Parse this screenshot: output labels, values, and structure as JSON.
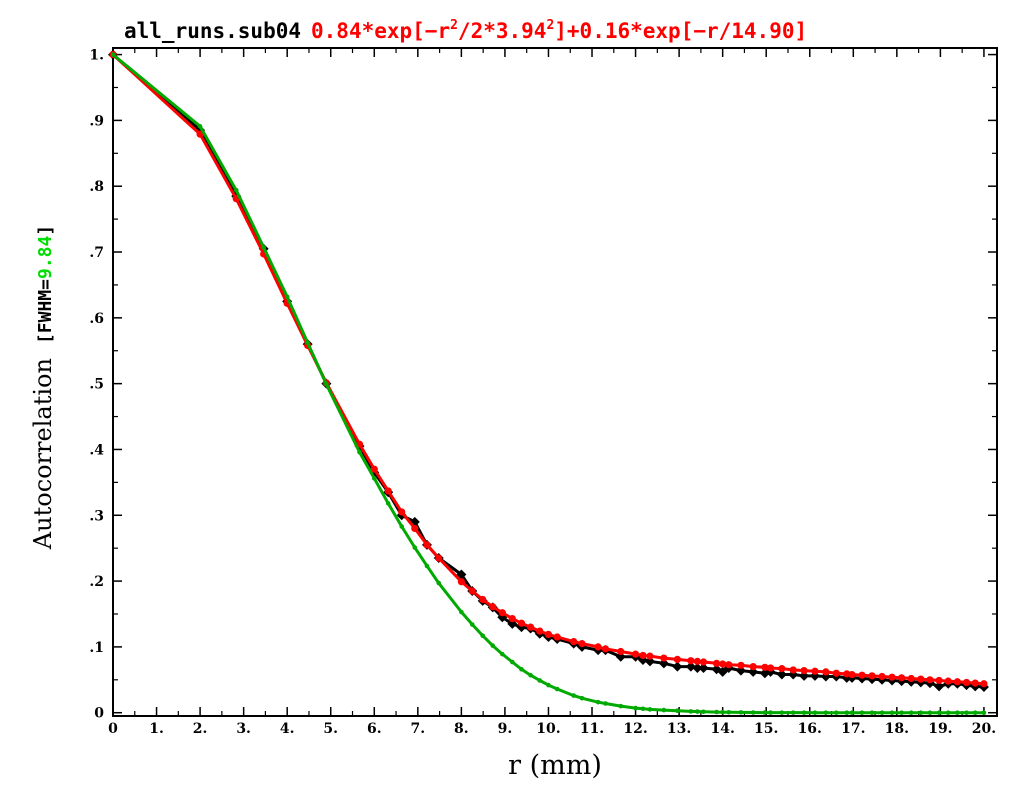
{
  "chart_data": {
    "type": "line",
    "title": "all_runs.sub04",
    "fit_label": {
      "p1": "0.84*exp[−r",
      "p2": "/2*3.94",
      "p3": "]+0.16*exp[−r/14.90]",
      "sup": "2"
    },
    "xlabel": "r (mm)",
    "ylabel": "Autocorrelation",
    "ylabel_fwhm_prefix": "[FWHM=",
    "ylabel_fwhm_value": "9.84",
    "ylabel_fwhm_suffix": "]",
    "xlim": [
      0,
      20.3
    ],
    "ylim": [
      -0.005,
      1.01
    ],
    "x_ticks": [
      {
        "v": 0,
        "label": "0"
      },
      {
        "v": 1,
        "label": "1."
      },
      {
        "v": 2,
        "label": "2."
      },
      {
        "v": 3,
        "label": "3."
      },
      {
        "v": 4,
        "label": "4."
      },
      {
        "v": 5,
        "label": "5."
      },
      {
        "v": 6,
        "label": "6."
      },
      {
        "v": 7,
        "label": "7."
      },
      {
        "v": 8,
        "label": "8."
      },
      {
        "v": 9,
        "label": "9."
      },
      {
        "v": 10,
        "label": "10."
      },
      {
        "v": 11,
        "label": "11."
      },
      {
        "v": 12,
        "label": "12."
      },
      {
        "v": 13,
        "label": "13."
      },
      {
        "v": 14,
        "label": "14."
      },
      {
        "v": 15,
        "label": "15."
      },
      {
        "v": 16,
        "label": "16."
      },
      {
        "v": 17,
        "label": "17."
      },
      {
        "v": 18,
        "label": "18."
      },
      {
        "v": 19,
        "label": "19."
      },
      {
        "v": 20,
        "label": "20."
      }
    ],
    "y_ticks": [
      {
        "v": 0,
        "label": "0"
      },
      {
        "v": 0.1,
        "label": ".1"
      },
      {
        "v": 0.2,
        "label": ".2"
      },
      {
        "v": 0.3,
        "label": ".3"
      },
      {
        "v": 0.4,
        "label": ".4"
      },
      {
        "v": 0.5,
        "label": ".5"
      },
      {
        "v": 0.6,
        "label": ".6"
      },
      {
        "v": 0.7,
        "label": ".7"
      },
      {
        "v": 0.8,
        "label": ".8"
      },
      {
        "v": 0.9,
        "label": ".9"
      },
      {
        "v": 1.0,
        "label": "1."
      }
    ],
    "grid": false,
    "colors": {
      "data": "#000000",
      "fit": "#ff0000",
      "gaussian": "#00aa00",
      "fwhm": "#00dd00"
    },
    "series": [
      {
        "color": "#000000",
        "marker": "diamond",
        "x": [
          0,
          2,
          2.83,
          3.46,
          4,
          4.47,
          4.9,
          5.66,
          6,
          6.32,
          6.63,
          6.93,
          7.21,
          7.48,
          8,
          8.25,
          8.49,
          8.72,
          8.94,
          9.17,
          9.38,
          9.59,
          9.8,
          10,
          10.2,
          10.58,
          10.77,
          11.14,
          11.31,
          11.66,
          12,
          12.17,
          12.33,
          12.65,
          12.96,
          13.27,
          13.42,
          13.56,
          13.86,
          14,
          14.14,
          14.42,
          14.7,
          14.97,
          15.1,
          15.36,
          15.62,
          15.87,
          16.12,
          16.37,
          16.61,
          16.85,
          16.97,
          17.2,
          17.43,
          17.66,
          17.89,
          18.11,
          18.33,
          18.55,
          18.76,
          18.97,
          19.18,
          19.39,
          19.6,
          19.8,
          20
        ],
        "y": [
          1.0,
          0.885,
          0.785,
          0.705,
          0.625,
          0.56,
          0.5,
          0.405,
          0.365,
          0.335,
          0.3,
          0.29,
          0.255,
          0.235,
          0.21,
          0.185,
          0.17,
          0.16,
          0.145,
          0.135,
          0.13,
          0.128,
          0.12,
          0.115,
          0.112,
          0.105,
          0.1,
          0.095,
          0.095,
          0.085,
          0.085,
          0.08,
          0.078,
          0.075,
          0.07,
          0.07,
          0.068,
          0.068,
          0.066,
          0.062,
          0.068,
          0.064,
          0.062,
          0.06,
          0.062,
          0.058,
          0.058,
          0.056,
          0.056,
          0.055,
          0.055,
          0.053,
          0.053,
          0.052,
          0.051,
          0.05,
          0.049,
          0.048,
          0.047,
          0.046,
          0.045,
          0.04,
          0.044,
          0.044,
          0.042,
          0.04,
          0.039
        ]
      },
      {
        "color": "#ff0000",
        "marker": "circle",
        "x": [
          0,
          2,
          2.83,
          3.46,
          4,
          4.47,
          4.9,
          5.66,
          6,
          6.32,
          6.63,
          6.93,
          7.21,
          7.48,
          8,
          8.25,
          8.49,
          8.72,
          8.94,
          9.17,
          9.38,
          9.59,
          9.8,
          10,
          10.2,
          10.58,
          10.77,
          11.14,
          11.31,
          11.66,
          12,
          12.17,
          12.33,
          12.65,
          12.96,
          13.27,
          13.42,
          13.56,
          13.86,
          14,
          14.14,
          14.42,
          14.7,
          14.97,
          15.1,
          15.36,
          15.62,
          15.87,
          16.12,
          16.37,
          16.61,
          16.85,
          16.97,
          17.2,
          17.43,
          17.66,
          17.89,
          18.11,
          18.33,
          18.55,
          18.76,
          18.97,
          19.18,
          19.39,
          19.6,
          19.8,
          20
        ],
        "y": [
          1.0,
          0.879,
          0.781,
          0.697,
          0.622,
          0.558,
          0.501,
          0.408,
          0.37,
          0.337,
          0.305,
          0.28,
          0.255,
          0.235,
          0.199,
          0.185,
          0.172,
          0.161,
          0.152,
          0.143,
          0.136,
          0.13,
          0.124,
          0.119,
          0.115,
          0.108,
          0.105,
          0.1,
          0.097,
          0.093,
          0.089,
          0.087,
          0.086,
          0.083,
          0.081,
          0.079,
          0.078,
          0.077,
          0.075,
          0.074,
          0.073,
          0.072,
          0.07,
          0.069,
          0.068,
          0.067,
          0.065,
          0.064,
          0.063,
          0.062,
          0.06,
          0.059,
          0.058,
          0.057,
          0.056,
          0.055,
          0.054,
          0.053,
          0.052,
          0.051,
          0.05,
          0.049,
          0.048,
          0.047,
          0.046,
          0.045,
          0.044
        ]
      },
      {
        "color": "#00aa00",
        "marker": "dot",
        "x": [
          0,
          2,
          2.83,
          3.46,
          4,
          4.47,
          4.9,
          5.66,
          6,
          6.32,
          6.63,
          6.93,
          7.21,
          7.48,
          8,
          8.25,
          8.49,
          8.72,
          8.94,
          9.17,
          9.38,
          9.59,
          9.8,
          10,
          10.2,
          10.58,
          10.77,
          11.14,
          11.31,
          11.66,
          12,
          12.17,
          12.33,
          12.65,
          12.96,
          13.27,
          13.42,
          13.56,
          13.86,
          14,
          14.14,
          14.42,
          14.7,
          14.97,
          15.1,
          15.36,
          15.62,
          15.87,
          16.12,
          16.37,
          16.61,
          16.85,
          16.97,
          17.2,
          17.43,
          17.66,
          17.89,
          18.11,
          18.33,
          18.55,
          18.76,
          18.97,
          19.18,
          19.39,
          19.6,
          19.8,
          20
        ],
        "y": [
          1.0,
          0.891,
          0.794,
          0.707,
          0.632,
          0.562,
          0.499,
          0.396,
          0.356,
          0.318,
          0.283,
          0.251,
          0.223,
          0.197,
          0.153,
          0.134,
          0.117,
          0.102,
          0.089,
          0.077,
          0.066,
          0.057,
          0.049,
          0.042,
          0.036,
          0.026,
          0.022,
          0.016,
          0.014,
          0.01,
          0.007,
          0.006,
          0.005,
          0.004,
          0.003,
          0.002,
          0.0017,
          0.0014,
          0.001,
          0.0008,
          0.0007,
          0.0005,
          0.0003,
          0.0002,
          0.0002,
          0.0001,
          0.0001,
          0.0001,
          0,
          0,
          0,
          0,
          0,
          0,
          0,
          0,
          0,
          0,
          0,
          0,
          0,
          0,
          0,
          0,
          0,
          0,
          0
        ]
      }
    ]
  }
}
